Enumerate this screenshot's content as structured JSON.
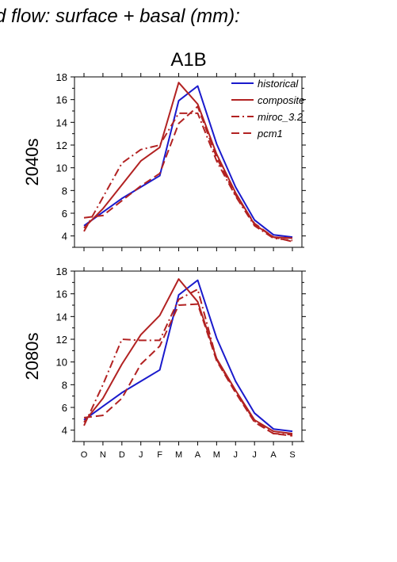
{
  "header_text": "d flow: surface + basal (mm):",
  "scenario": "A1B",
  "chart_data": [
    {
      "type": "line",
      "panel_label": "2040s",
      "categories": [
        "O",
        "N",
        "D",
        "J",
        "F",
        "M",
        "A",
        "M",
        "J",
        "J",
        "A",
        "S"
      ],
      "ylim": [
        3,
        18
      ],
      "yticks": [
        4,
        6,
        8,
        10,
        12,
        14,
        16,
        18
      ],
      "legend_position": "top-right",
      "series": [
        {
          "name": "historical",
          "color": "#1a1acc",
          "dash": "solid",
          "values": [
            4.9,
            6.1,
            7.3,
            8.3,
            9.3,
            15.9,
            17.2,
            12.1,
            8.3,
            5.4,
            4.1,
            3.9
          ]
        },
        {
          "name": "composite",
          "color": "#b22222",
          "dash": "solid",
          "values": [
            4.7,
            6.4,
            8.5,
            10.6,
            11.8,
            17.5,
            15.6,
            11.2,
            7.8,
            5.0,
            3.9,
            3.8
          ]
        },
        {
          "name": "miroc_3.2",
          "color": "#b22222",
          "dash": "dashdot",
          "values": [
            4.4,
            7.4,
            10.4,
            11.6,
            12.0,
            14.8,
            14.8,
            10.6,
            7.5,
            4.9,
            3.8,
            3.6
          ]
        },
        {
          "name": "pcm1",
          "color": "#b22222",
          "dash": "dashed",
          "values": [
            5.6,
            5.8,
            7.1,
            8.4,
            9.5,
            13.9,
            15.4,
            10.9,
            7.6,
            5.1,
            3.9,
            3.5
          ]
        }
      ]
    },
    {
      "type": "line",
      "panel_label": "2080s",
      "categories": [
        "O",
        "N",
        "D",
        "J",
        "F",
        "M",
        "A",
        "M",
        "J",
        "J",
        "A",
        "S"
      ],
      "ylim": [
        3,
        18
      ],
      "yticks": [
        4,
        6,
        8,
        10,
        12,
        14,
        16,
        18
      ],
      "series": [
        {
          "name": "historical",
          "color": "#1a1acc",
          "dash": "solid",
          "values": [
            4.9,
            6.1,
            7.3,
            8.3,
            9.3,
            15.9,
            17.2,
            12.1,
            8.3,
            5.5,
            4.1,
            3.9
          ]
        },
        {
          "name": "composite",
          "color": "#b22222",
          "dash": "solid",
          "values": [
            4.7,
            6.8,
            9.8,
            12.4,
            14.1,
            17.3,
            15.3,
            10.3,
            7.5,
            4.9,
            3.9,
            3.7
          ]
        },
        {
          "name": "miroc_3.2",
          "color": "#b22222",
          "dash": "dashdot",
          "values": [
            4.4,
            8.0,
            12.0,
            11.9,
            11.9,
            15.5,
            16.4,
            10.2,
            7.4,
            4.8,
            3.7,
            3.6
          ]
        },
        {
          "name": "pcm1",
          "color": "#b22222",
          "dash": "dashed",
          "values": [
            5.1,
            5.3,
            6.8,
            9.8,
            11.4,
            15.0,
            15.1,
            10.1,
            7.3,
            4.7,
            3.7,
            3.5
          ]
        }
      ]
    }
  ]
}
